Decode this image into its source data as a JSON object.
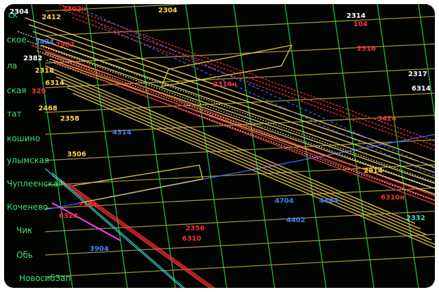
{
  "title": "",
  "stations": [
    "ск",
    "ское",
    "ла",
    "ская",
    "тат",
    "кошино",
    "улымская",
    "Чуплеенская",
    "Коченево",
    "Чик",
    "Обь",
    "НовосибЗап"
  ],
  "train_numbers": [
    {
      "text": "2304",
      "color": "#ffffff"
    },
    {
      "text": "2302н",
      "color": "#ff3030"
    },
    {
      "text": "2412",
      "color": "#ffd84a"
    },
    {
      "text": "2304",
      "color": "#ffd84a"
    },
    {
      "text": "2902",
      "color": "#ff3030"
    },
    {
      "text": "3424",
      "color": "#4a7bff"
    },
    {
      "text": "2382",
      "color": "#ffffff"
    },
    {
      "text": "2318",
      "color": "#ffd84a"
    },
    {
      "text": "6314",
      "color": "#ffd84a"
    },
    {
      "text": "320",
      "color": "#ff3030"
    },
    {
      "text": "2468",
      "color": "#ffd84a"
    },
    {
      "text": "2358",
      "color": "#ffd84a"
    },
    {
      "text": "4314",
      "color": "#4a7bff"
    },
    {
      "text": "3506",
      "color": "#ffd84a"
    },
    {
      "text": "2354",
      "color": "#ff3030"
    },
    {
      "text": "6324",
      "color": "#ff3030"
    },
    {
      "text": "3904",
      "color": "#4a7bff"
    },
    {
      "text": "2356",
      "color": "#ff3030"
    },
    {
      "text": "4704",
      "color": "#4a7bff"
    },
    {
      "text": "4404",
      "color": "#4a7bff"
    },
    {
      "text": "4402",
      "color": "#4a7bff"
    },
    {
      "text": "2914",
      "color": "#ffd84a"
    },
    {
      "text": "6310н",
      "color": "#ff3030"
    },
    {
      "text": "2332",
      "color": "#2fe0d0"
    },
    {
      "text": "2317",
      "color": "#ffffff"
    },
    {
      "text": "6314",
      "color": "#ffffff"
    },
    {
      "text": "104",
      "color": "#ff3030"
    },
    {
      "text": "2316",
      "color": "#ff3030"
    },
    {
      "text": "3424",
      "color": "#ff3030"
    },
    {
      "text": "2314",
      "color": "#ffffff"
    },
    {
      "text": "2314н",
      "color": "#ff3030"
    },
    {
      "text": "6310",
      "color": "#ff3030"
    }
  ],
  "colors": {
    "background": "#020402",
    "grid_vertical": "#1fe23a",
    "grid_horizontal": "#d6c24a",
    "station_text": "#39e27a",
    "freight": "#e6c64a",
    "passenger": "#ff3030",
    "other": "#3c5cff",
    "white_trains": "#e6e6e6",
    "cyan": "#2fd8d0",
    "magenta": "#ff40ff"
  }
}
